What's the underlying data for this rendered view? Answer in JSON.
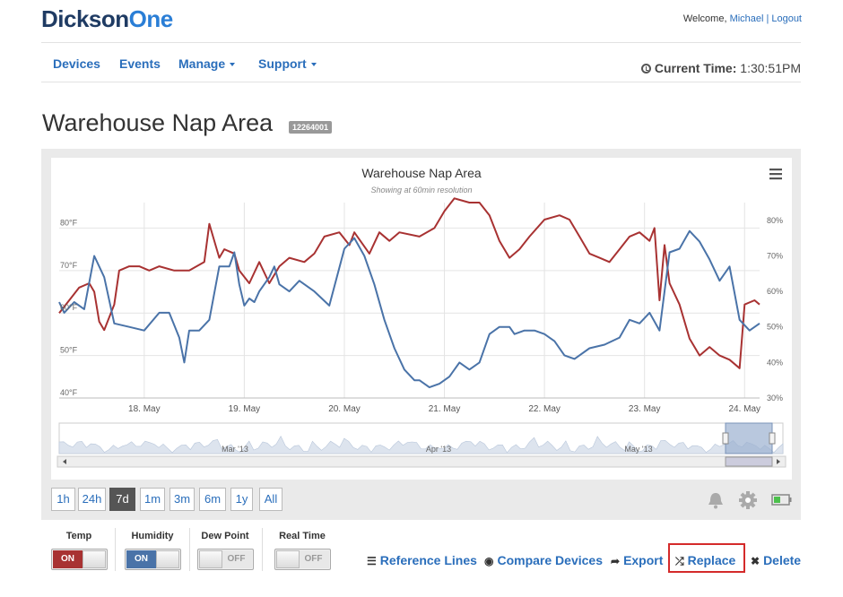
{
  "header": {
    "logo_part1": "Dickson",
    "logo_part2": "One",
    "welcome_text": "Welcome,",
    "user_name": "Michael",
    "logout_label": "Logout"
  },
  "nav": {
    "items": [
      {
        "label": "Devices",
        "dropdown": false
      },
      {
        "label": "Events",
        "dropdown": false
      },
      {
        "label": "Manage",
        "dropdown": true
      },
      {
        "label": "Support",
        "dropdown": true
      }
    ],
    "current_time_label": "Current Time:",
    "current_time_value": "1:30:51PM"
  },
  "page": {
    "title": "Warehouse Nap Area",
    "serial_badge": "12264001"
  },
  "colors": {
    "temp": "#a83232",
    "humidity": "#4a73a8",
    "link": "#2a6ebb",
    "highlight": "#d42a2a"
  },
  "chart_data": {
    "type": "line",
    "title": "Warehouse Nap Area",
    "subtitle": "Showing at 60min resolution",
    "x_ticks": [
      "18. May",
      "19. May",
      "20. May",
      "21. May",
      "22. May",
      "23. May",
      "24. May"
    ],
    "y_left_ticks": [
      "40°F",
      "50°F",
      "60°F",
      "70°F",
      "80°F"
    ],
    "y_left_range": [
      40,
      86
    ],
    "y_right_ticks": [
      "30%",
      "40%",
      "50%",
      "60%",
      "70%",
      "80%"
    ],
    "y_right_range": [
      30,
      85
    ],
    "x_range_days": [
      17.0,
      24.0
    ],
    "grid": true,
    "series": [
      {
        "color_key": "temp",
        "points": [
          [
            17.0,
            60
          ],
          [
            17.1,
            63
          ],
          [
            17.2,
            66
          ],
          [
            17.3,
            67
          ],
          [
            17.35,
            65
          ],
          [
            17.4,
            58
          ],
          [
            17.45,
            56
          ],
          [
            17.55,
            62
          ],
          [
            17.6,
            70
          ],
          [
            17.7,
            71
          ],
          [
            17.8,
            71
          ],
          [
            17.9,
            70
          ],
          [
            18.0,
            71
          ],
          [
            18.15,
            70
          ],
          [
            18.3,
            70
          ],
          [
            18.45,
            72
          ],
          [
            18.5,
            81
          ],
          [
            18.6,
            73
          ],
          [
            18.65,
            75
          ],
          [
            18.75,
            74
          ],
          [
            18.8,
            70
          ],
          [
            18.9,
            67
          ],
          [
            19.0,
            72
          ],
          [
            19.1,
            67
          ],
          [
            19.2,
            71
          ],
          [
            19.3,
            73
          ],
          [
            19.45,
            72
          ],
          [
            19.55,
            74
          ],
          [
            19.65,
            78
          ],
          [
            19.8,
            79
          ],
          [
            19.9,
            76
          ],
          [
            19.95,
            79
          ],
          [
            20.1,
            74
          ],
          [
            20.2,
            79
          ],
          [
            20.3,
            77
          ],
          [
            20.4,
            79
          ],
          [
            20.6,
            78
          ],
          [
            20.75,
            80
          ],
          [
            20.85,
            84
          ],
          [
            20.95,
            87
          ],
          [
            21.1,
            86
          ],
          [
            21.2,
            86
          ],
          [
            21.3,
            83
          ],
          [
            21.4,
            77
          ],
          [
            21.5,
            73
          ],
          [
            21.6,
            75
          ],
          [
            21.7,
            78
          ],
          [
            21.85,
            82
          ],
          [
            22.0,
            83
          ],
          [
            22.1,
            82
          ],
          [
            22.2,
            78
          ],
          [
            22.3,
            74
          ],
          [
            22.4,
            73
          ],
          [
            22.5,
            72
          ],
          [
            22.6,
            75
          ],
          [
            22.7,
            78
          ],
          [
            22.8,
            79
          ],
          [
            22.9,
            77
          ],
          [
            22.95,
            80
          ],
          [
            23.0,
            63
          ],
          [
            23.05,
            76
          ],
          [
            23.1,
            67
          ],
          [
            23.2,
            62
          ],
          [
            23.3,
            54
          ],
          [
            23.4,
            50
          ],
          [
            23.5,
            52
          ],
          [
            23.6,
            50
          ],
          [
            23.7,
            49
          ],
          [
            23.8,
            47
          ],
          [
            23.85,
            62
          ],
          [
            23.95,
            63
          ],
          [
            24.0,
            62
          ]
        ]
      },
      {
        "color_key": "humidity",
        "points": [
          [
            17.0,
            57
          ],
          [
            17.05,
            54
          ],
          [
            17.15,
            57
          ],
          [
            17.25,
            55
          ],
          [
            17.35,
            70
          ],
          [
            17.45,
            64
          ],
          [
            17.55,
            51
          ],
          [
            17.7,
            50
          ],
          [
            17.85,
            49
          ],
          [
            18.0,
            54
          ],
          [
            18.1,
            54
          ],
          [
            18.2,
            47
          ],
          [
            18.25,
            40
          ],
          [
            18.3,
            49
          ],
          [
            18.4,
            49
          ],
          [
            18.5,
            52
          ],
          [
            18.6,
            67
          ],
          [
            18.7,
            67
          ],
          [
            18.75,
            71
          ],
          [
            18.8,
            62
          ],
          [
            18.85,
            56
          ],
          [
            18.9,
            58
          ],
          [
            18.95,
            57
          ],
          [
            19.0,
            60
          ],
          [
            19.1,
            64
          ],
          [
            19.15,
            67
          ],
          [
            19.2,
            62
          ],
          [
            19.3,
            60
          ],
          [
            19.4,
            63
          ],
          [
            19.55,
            60
          ],
          [
            19.7,
            56
          ],
          [
            19.85,
            72
          ],
          [
            19.95,
            75
          ],
          [
            20.05,
            70
          ],
          [
            20.15,
            62
          ],
          [
            20.25,
            52
          ],
          [
            20.35,
            44
          ],
          [
            20.45,
            38
          ],
          [
            20.55,
            35
          ],
          [
            20.6,
            35
          ],
          [
            20.7,
            33
          ],
          [
            20.8,
            34
          ],
          [
            20.9,
            36
          ],
          [
            21.0,
            40
          ],
          [
            21.1,
            38
          ],
          [
            21.2,
            40
          ],
          [
            21.3,
            48
          ],
          [
            21.4,
            50
          ],
          [
            21.5,
            50
          ],
          [
            21.55,
            48
          ],
          [
            21.65,
            49
          ],
          [
            21.75,
            49
          ],
          [
            21.85,
            48
          ],
          [
            21.95,
            46
          ],
          [
            22.05,
            42
          ],
          [
            22.15,
            41
          ],
          [
            22.3,
            44
          ],
          [
            22.45,
            45
          ],
          [
            22.6,
            47
          ],
          [
            22.7,
            52
          ],
          [
            22.8,
            51
          ],
          [
            22.9,
            54
          ],
          [
            23.0,
            49
          ],
          [
            23.1,
            71
          ],
          [
            23.2,
            72
          ],
          [
            23.3,
            77
          ],
          [
            23.4,
            74
          ],
          [
            23.5,
            69
          ],
          [
            23.6,
            63
          ],
          [
            23.7,
            67
          ],
          [
            23.8,
            52
          ],
          [
            23.9,
            49
          ],
          [
            24.0,
            51
          ]
        ]
      }
    ],
    "navigator_labels": [
      "Mar '13",
      "Apr '13",
      "May '13"
    ]
  },
  "range_buttons": [
    {
      "label": "1h",
      "active": false
    },
    {
      "label": "24h",
      "active": false
    },
    {
      "label": "7d",
      "active": true
    },
    {
      "label": "1m",
      "active": false
    },
    {
      "label": "3m",
      "active": false
    },
    {
      "label": "6m",
      "active": false
    },
    {
      "label": "1y",
      "active": false
    },
    {
      "label": "All",
      "active": false
    }
  ],
  "toggles": [
    {
      "label": "Temp",
      "state": "ON",
      "color": "#a83232"
    },
    {
      "label": "Humidity",
      "state": "ON",
      "color": "#4a73a8"
    },
    {
      "label": "Dew Point",
      "state": "OFF"
    },
    {
      "label": "Real Time",
      "state": "OFF"
    }
  ],
  "actions": {
    "reference_lines": "Reference Lines",
    "compare_devices": "Compare Devices",
    "export": "Export",
    "replace": "Replace",
    "delete": "Delete"
  }
}
